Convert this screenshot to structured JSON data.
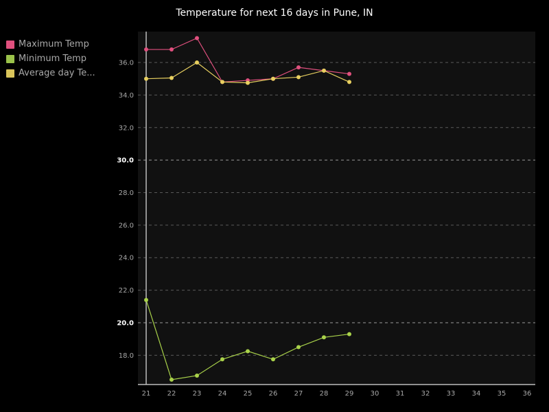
{
  "chart_data": {
    "type": "line",
    "title": "Temperature for next 16 days in Pune, IN",
    "x": [
      21,
      22,
      23,
      24,
      25,
      26,
      27,
      28,
      29
    ],
    "x_ticks": [
      "21",
      "22",
      "23",
      "24",
      "25",
      "26",
      "27",
      "28",
      "29",
      "30",
      "31",
      "32",
      "33",
      "34",
      "35",
      "36"
    ],
    "xlim": [
      21,
      36
    ],
    "y_ticks": [
      "18.0",
      "20.0",
      "22.0",
      "24.0",
      "26.0",
      "28.0",
      "30.0",
      "32.0",
      "34.0",
      "36.0"
    ],
    "ylim": [
      16.2,
      37.9
    ],
    "grid": true,
    "legend_position": "top-left",
    "series": [
      {
        "name": "Maximum Temp",
        "color": "#e0507e",
        "values": [
          36.8,
          36.8,
          37.5,
          34.8,
          34.9,
          35.0,
          35.7,
          35.5,
          35.3
        ]
      },
      {
        "name": "Minimum Temp",
        "color": "#a9d24a",
        "values": [
          21.4,
          16.5,
          16.75,
          17.75,
          18.25,
          17.75,
          18.5,
          19.1,
          19.3
        ]
      },
      {
        "name": "Average day Te...",
        "color": "#e8d060",
        "values": [
          35.0,
          35.05,
          36.0,
          34.8,
          34.75,
          35.0,
          35.1,
          35.5,
          34.8
        ]
      }
    ]
  }
}
